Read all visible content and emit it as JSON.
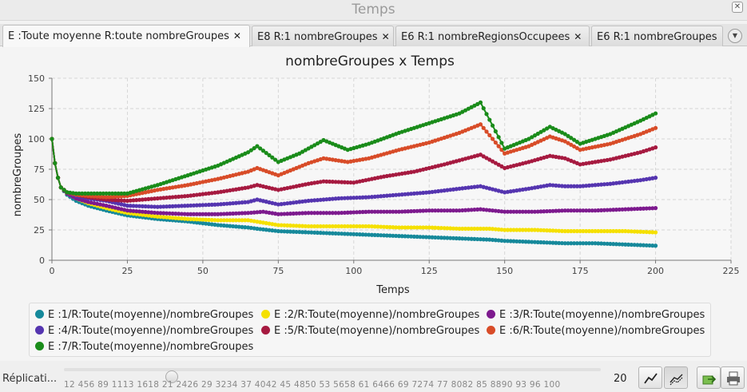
{
  "window": {
    "title": "Temps"
  },
  "tabs": [
    {
      "label": "E :Toute moyenne R:toute nombreGroupes",
      "close": "✕"
    },
    {
      "label": "E8 R:1 nombreGroupes",
      "close": "✕"
    },
    {
      "label": "E6 R:1 nombreRegionsOccupees",
      "close": "✕"
    },
    {
      "label": "E6 R:1 nombreGroupes",
      "close": "✕"
    }
  ],
  "tab_menu_icon": "chevron-down-icon",
  "chart_data": {
    "type": "line",
    "title": "nombreGroupes x Temps",
    "xlabel": "Temps",
    "ylabel": "nombreGroupes",
    "xlim": [
      0,
      225
    ],
    "ylim": [
      0,
      150
    ],
    "xticks": [
      0,
      25,
      50,
      75,
      100,
      125,
      150,
      175,
      200,
      225
    ],
    "yticks": [
      0,
      25,
      50,
      75,
      100,
      125,
      150
    ],
    "grid": true,
    "legend_position": "bottom",
    "series": [
      {
        "name": "E :1/R:Toute(moyenne)/nombreGroupes",
        "color": "#16899b",
        "points": [
          [
            0,
            100
          ],
          [
            1,
            80
          ],
          [
            2,
            68
          ],
          [
            3,
            60
          ],
          [
            5,
            54
          ],
          [
            8,
            49
          ],
          [
            12,
            45
          ],
          [
            18,
            41
          ],
          [
            25,
            37
          ],
          [
            35,
            34
          ],
          [
            45,
            32
          ],
          [
            55,
            29
          ],
          [
            65,
            27
          ],
          [
            68,
            26
          ],
          [
            75,
            24
          ],
          [
            85,
            23
          ],
          [
            95,
            22
          ],
          [
            105,
            21
          ],
          [
            115,
            20
          ],
          [
            125,
            19
          ],
          [
            135,
            18
          ],
          [
            145,
            17
          ],
          [
            150,
            16
          ],
          [
            160,
            15
          ],
          [
            170,
            14
          ],
          [
            180,
            14
          ],
          [
            190,
            13
          ],
          [
            200,
            12
          ]
        ]
      },
      {
        "name": "E :2/R:Toute(moyenne)/nombreGroupes",
        "color": "#f5e000",
        "points": [
          [
            0,
            100
          ],
          [
            1,
            80
          ],
          [
            2,
            68
          ],
          [
            3,
            60
          ],
          [
            5,
            55
          ],
          [
            8,
            51
          ],
          [
            12,
            47
          ],
          [
            18,
            43
          ],
          [
            25,
            39
          ],
          [
            35,
            36
          ],
          [
            45,
            34
          ],
          [
            55,
            33
          ],
          [
            65,
            33
          ],
          [
            70,
            31
          ],
          [
            75,
            29
          ],
          [
            85,
            28
          ],
          [
            95,
            28
          ],
          [
            105,
            28
          ],
          [
            115,
            27
          ],
          [
            125,
            27
          ],
          [
            135,
            26
          ],
          [
            145,
            26
          ],
          [
            150,
            25
          ],
          [
            160,
            25
          ],
          [
            170,
            24
          ],
          [
            180,
            24
          ],
          [
            190,
            24
          ],
          [
            200,
            23
          ]
        ]
      },
      {
        "name": "E :3/R:Toute(moyenne)/nombreGroupes",
        "color": "#7d1a8e",
        "points": [
          [
            0,
            100
          ],
          [
            1,
            80
          ],
          [
            2,
            68
          ],
          [
            3,
            60
          ],
          [
            5,
            55
          ],
          [
            8,
            51
          ],
          [
            12,
            48
          ],
          [
            18,
            45
          ],
          [
            25,
            41
          ],
          [
            35,
            39
          ],
          [
            45,
            38
          ],
          [
            55,
            38
          ],
          [
            65,
            39
          ],
          [
            70,
            40
          ],
          [
            75,
            38
          ],
          [
            85,
            39
          ],
          [
            95,
            39
          ],
          [
            105,
            40
          ],
          [
            115,
            40
          ],
          [
            125,
            41
          ],
          [
            135,
            41
          ],
          [
            142,
            42
          ],
          [
            150,
            40
          ],
          [
            160,
            40
          ],
          [
            170,
            41
          ],
          [
            180,
            41
          ],
          [
            190,
            42
          ],
          [
            200,
            43
          ]
        ]
      },
      {
        "name": "E :4/R:Toute(moyenne)/nombreGroupes",
        "color": "#5535b0",
        "points": [
          [
            0,
            100
          ],
          [
            1,
            80
          ],
          [
            2,
            68
          ],
          [
            3,
            60
          ],
          [
            5,
            56
          ],
          [
            8,
            53
          ],
          [
            12,
            51
          ],
          [
            18,
            49
          ],
          [
            25,
            45
          ],
          [
            35,
            44
          ],
          [
            45,
            45
          ],
          [
            55,
            46
          ],
          [
            65,
            48
          ],
          [
            68,
            50
          ],
          [
            75,
            46
          ],
          [
            85,
            49
          ],
          [
            95,
            51
          ],
          [
            105,
            52
          ],
          [
            115,
            54
          ],
          [
            125,
            56
          ],
          [
            135,
            59
          ],
          [
            142,
            61
          ],
          [
            150,
            56
          ],
          [
            158,
            59
          ],
          [
            165,
            62
          ],
          [
            170,
            61
          ],
          [
            175,
            61
          ],
          [
            185,
            63
          ],
          [
            195,
            66
          ],
          [
            200,
            68
          ]
        ]
      },
      {
        "name": "E :5/R:Toute(moyenne)/nombreGroupes",
        "color": "#a61a40",
        "points": [
          [
            0,
            100
          ],
          [
            1,
            80
          ],
          [
            2,
            68
          ],
          [
            3,
            60
          ],
          [
            5,
            56
          ],
          [
            8,
            54
          ],
          [
            12,
            52
          ],
          [
            18,
            50
          ],
          [
            25,
            49
          ],
          [
            35,
            51
          ],
          [
            45,
            53
          ],
          [
            55,
            56
          ],
          [
            65,
            60
          ],
          [
            68,
            62
          ],
          [
            75,
            58
          ],
          [
            85,
            63
          ],
          [
            90,
            65
          ],
          [
            100,
            64
          ],
          [
            110,
            69
          ],
          [
            120,
            73
          ],
          [
            130,
            79
          ],
          [
            142,
            87
          ],
          [
            150,
            76
          ],
          [
            158,
            81
          ],
          [
            165,
            86
          ],
          [
            170,
            84
          ],
          [
            175,
            79
          ],
          [
            185,
            83
          ],
          [
            195,
            89
          ],
          [
            200,
            93
          ]
        ]
      },
      {
        "name": "E :6/R:Toute(moyenne)/nombreGroupes",
        "color": "#d84c28",
        "points": [
          [
            0,
            100
          ],
          [
            1,
            80
          ],
          [
            2,
            68
          ],
          [
            3,
            60
          ],
          [
            5,
            56
          ],
          [
            8,
            54
          ],
          [
            12,
            53
          ],
          [
            18,
            52
          ],
          [
            25,
            53
          ],
          [
            35,
            58
          ],
          [
            45,
            62
          ],
          [
            55,
            67
          ],
          [
            65,
            73
          ],
          [
            68,
            76
          ],
          [
            75,
            70
          ],
          [
            85,
            80
          ],
          [
            90,
            84
          ],
          [
            98,
            81
          ],
          [
            105,
            84
          ],
          [
            115,
            91
          ],
          [
            125,
            97
          ],
          [
            135,
            105
          ],
          [
            142,
            112
          ],
          [
            150,
            88
          ],
          [
            158,
            94
          ],
          [
            165,
            102
          ],
          [
            170,
            98
          ],
          [
            175,
            91
          ],
          [
            185,
            96
          ],
          [
            195,
            104
          ],
          [
            200,
            109
          ]
        ]
      },
      {
        "name": "E :7/R:Toute(moyenne)/nombreGroupes",
        "color": "#1a8c1a",
        "points": [
          [
            0,
            100
          ],
          [
            1,
            80
          ],
          [
            2,
            68
          ],
          [
            3,
            60
          ],
          [
            5,
            56
          ],
          [
            8,
            55
          ],
          [
            12,
            55
          ],
          [
            18,
            55
          ],
          [
            25,
            55
          ],
          [
            35,
            62
          ],
          [
            45,
            70
          ],
          [
            55,
            78
          ],
          [
            65,
            89
          ],
          [
            68,
            94
          ],
          [
            75,
            81
          ],
          [
            82,
            88
          ],
          [
            90,
            99
          ],
          [
            98,
            91
          ],
          [
            105,
            96
          ],
          [
            115,
            105
          ],
          [
            125,
            113
          ],
          [
            135,
            121
          ],
          [
            142,
            130
          ],
          [
            150,
            92
          ],
          [
            158,
            100
          ],
          [
            165,
            110
          ],
          [
            170,
            104
          ],
          [
            175,
            96
          ],
          [
            185,
            104
          ],
          [
            195,
            115
          ],
          [
            200,
            121
          ]
        ]
      }
    ]
  },
  "footer": {
    "replication_label": "Réplicati...",
    "slider_ticks": "12 456 89 1113 1618 21 2426 29 3234 37 4042 45 4850 53 5658 61 6466 69 7274 77 8082 85 8890 93 96 100",
    "slider_value": "20",
    "buttons": [
      {
        "name": "line-chart-icon"
      },
      {
        "name": "scatter-chart-icon"
      },
      {
        "name": "export-icon"
      },
      {
        "name": "print-icon"
      }
    ]
  }
}
